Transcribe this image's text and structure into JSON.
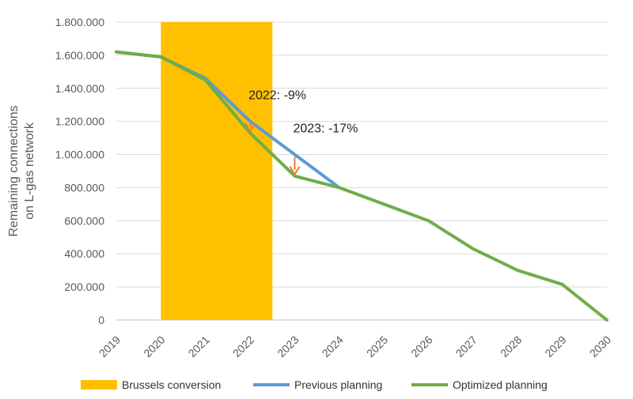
{
  "chart_data": {
    "type": "line",
    "title": "",
    "xlabel": "",
    "ylabel_lines": [
      "Remaining connections",
      "on L-gas network"
    ],
    "ylim": [
      0,
      1800000
    ],
    "yticks": [
      0,
      200000,
      400000,
      600000,
      800000,
      1000000,
      1200000,
      1400000,
      1600000,
      1800000
    ],
    "ytick_labels": [
      "0",
      "200.000",
      "400.000",
      "600.000",
      "800.000",
      "1.000.000",
      "1.200.000",
      "1.400.000",
      "1.600.000",
      "1.800.000"
    ],
    "x": [
      "2019",
      "2020",
      "2021",
      "2022",
      "2023",
      "2024",
      "2025",
      "2026",
      "2027",
      "2028",
      "2029",
      "2030"
    ],
    "grid": true,
    "legend_position": "bottom",
    "shaded_region": {
      "name": "Brussels conversion",
      "x_start": "2020",
      "x_end": "2022.5",
      "color": "#FFC000"
    },
    "series": [
      {
        "name": "Previous planning",
        "color": "#5B9BD5",
        "points": [
          [
            "2019",
            1620000
          ],
          [
            "2020",
            1590000
          ],
          [
            "2021",
            1460000
          ],
          [
            "2022",
            1200000
          ],
          [
            "2023",
            1000000
          ],
          [
            "2024",
            800000
          ]
        ]
      },
      {
        "name": "Optimized planning",
        "color": "#70AD47",
        "points": [
          [
            "2019",
            1620000
          ],
          [
            "2020",
            1590000
          ],
          [
            "2021",
            1450000
          ],
          [
            "2022",
            1130000
          ],
          [
            "2023",
            870000
          ],
          [
            "2024",
            800000
          ],
          [
            "2025",
            700000
          ],
          [
            "2026",
            600000
          ],
          [
            "2027",
            430000
          ],
          [
            "2028",
            300000
          ],
          [
            "2029",
            215000
          ],
          [
            "2030",
            0
          ]
        ]
      }
    ],
    "annotations": [
      {
        "text": "2022: -9%",
        "x": "2022",
        "from": 1200000,
        "to": 1130000,
        "color": "#ED7D31"
      },
      {
        "text": "2023: -17%",
        "x": "2023",
        "from": 1000000,
        "to": 870000,
        "color": "#ED7D31"
      }
    ]
  }
}
